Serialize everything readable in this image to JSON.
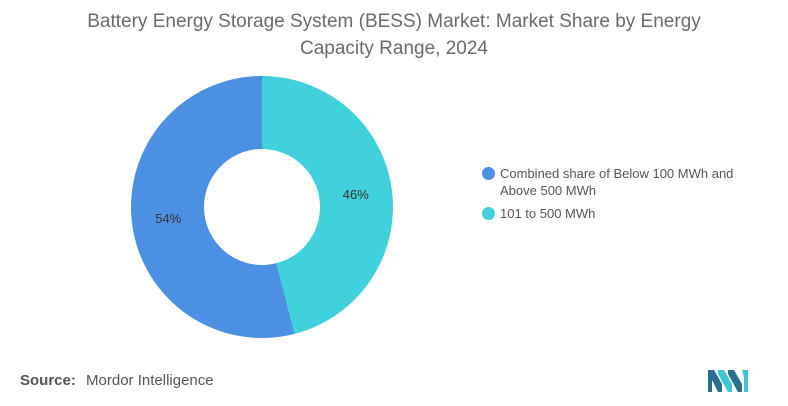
{
  "header": {
    "title_line1": "Battery Energy Storage System (BESS) Market: Market Share by Energy",
    "title_line2": "Capacity Range, 2024"
  },
  "chart_data": {
    "type": "pie",
    "donut": true,
    "title": "Battery Energy Storage System (BESS) Market: Market Share by Energy Capacity Range, 2024",
    "legend_position": "right",
    "slices": [
      {
        "name": "101 to 500 MWh",
        "value": 46,
        "label": "46%",
        "color": "#41d1dc"
      },
      {
        "name": "Combined share of Below 100 MWh and Above 500 MWh",
        "value": 54,
        "label": "54%",
        "color": "#4b90e2"
      }
    ]
  },
  "legend": {
    "items": [
      {
        "label": "Combined share of Below 100 MWh and Above 500 MWh",
        "color": "#4b90e2"
      },
      {
        "label": "101 to 500 MWh",
        "color": "#41d1dc"
      }
    ]
  },
  "footer": {
    "source_label": "Source:",
    "source_value": "Mordor Intelligence",
    "logo_icon": "mordor-intelligence-logo-icon",
    "logo_colors": [
      "#2a6f8f",
      "#41c4d3"
    ]
  }
}
